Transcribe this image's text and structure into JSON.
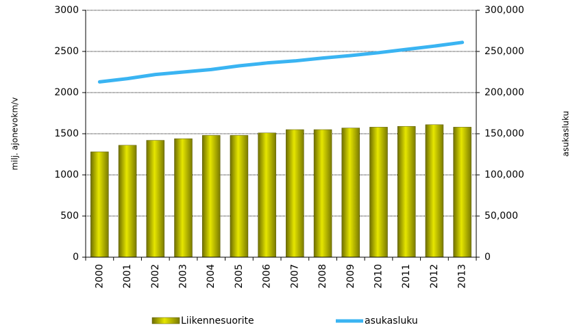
{
  "chart_data": {
    "type": "bar",
    "categories": [
      "2000",
      "2001",
      "2002",
      "2003",
      "2004",
      "2005",
      "2006",
      "2007",
      "2008",
      "2009",
      "2010",
      "2011",
      "2012",
      "2013"
    ],
    "series": [
      {
        "name": "Liikennesuorite",
        "type": "bar",
        "color": "#c8c800",
        "values": [
          1280,
          1360,
          1420,
          1440,
          1480,
          1480,
          1510,
          1550,
          1550,
          1570,
          1580,
          1590,
          1610,
          1580
        ]
      },
      {
        "name": "asukasluku",
        "type": "line",
        "axis": "y2",
        "color": "#3ab4f2",
        "values": [
          213000,
          217000,
          222000,
          225000,
          228000,
          232500,
          236000,
          238500,
          242000,
          245000,
          248500,
          252500,
          256500,
          261000
        ]
      }
    ],
    "ylabel": "milj. ajonevokm/v",
    "y2label": "asukasluku",
    "ylim": [
      0,
      3000
    ],
    "yticks": [
      0,
      500,
      1000,
      1500,
      2000,
      2500,
      3000
    ],
    "y2lim": [
      0,
      300000
    ],
    "y2ticks": [
      0,
      {
        "value": 50000,
        "label": "50,000"
      },
      {
        "value": 100000,
        "label": "100,000"
      },
      {
        "value": 150000,
        "label": "150,000"
      },
      {
        "value": 200000,
        "label": "200,000"
      },
      {
        "value": 250000,
        "label": "250,000"
      },
      {
        "value": 300000,
        "label": "300,000"
      }
    ],
    "grid": true,
    "legend": "bottom"
  }
}
